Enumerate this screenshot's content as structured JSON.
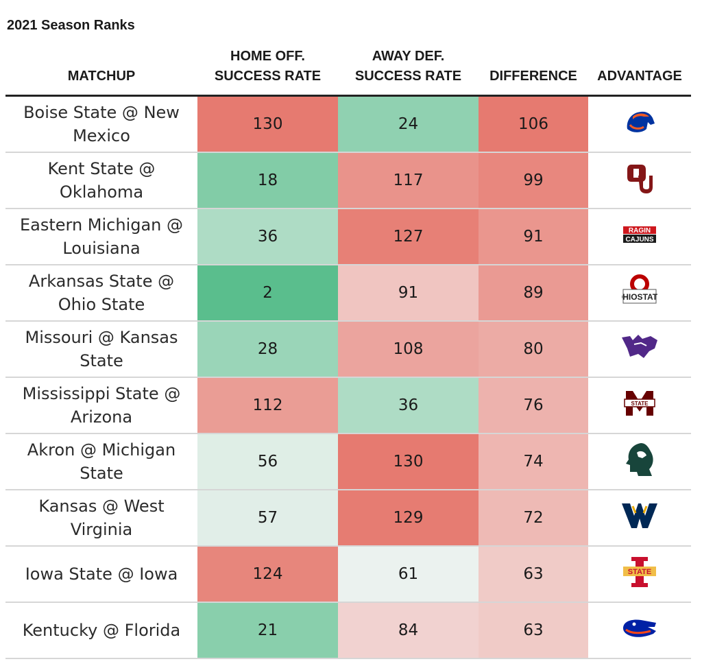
{
  "title": "2021 Season Ranks",
  "headers": {
    "matchup": "MATCHUP",
    "home_off": [
      "HOME OFF.",
      "SUCCESS RATE"
    ],
    "away_def": [
      "AWAY DEF.",
      "SUCCESS RATE"
    ],
    "difference": "DIFFERENCE",
    "advantage": "ADVANTAGE"
  },
  "colors": {
    "green_strong": "#58bd8b",
    "red_strong": "#e67a70",
    "light": "#f6f6f6"
  },
  "chart_data": {
    "type": "table",
    "title": "2021 Season Ranks",
    "columns": [
      "MATCHUP",
      "HOME OFF. SUCCESS RATE",
      "AWAY DEF. SUCCESS RATE",
      "DIFFERENCE",
      "ADVANTAGE"
    ],
    "rows": [
      {
        "matchup": "Boise State @ New Mexico",
        "home_off": 130,
        "away_def": 24,
        "difference": 106,
        "advantage_icon": "boise-state-bronco-logo"
      },
      {
        "matchup": "Kent State @ Oklahoma",
        "home_off": 18,
        "away_def": 117,
        "difference": 99,
        "advantage_icon": "oklahoma-ou-logo"
      },
      {
        "matchup": "Eastern Michigan @ Louisiana",
        "home_off": 36,
        "away_def": 127,
        "difference": 91,
        "advantage_icon": "ragin-cajuns-logo"
      },
      {
        "matchup": "Arkansas State @ Ohio State",
        "home_off": 2,
        "away_def": 91,
        "difference": 89,
        "advantage_icon": "ohio-state-logo"
      },
      {
        "matchup": "Missouri @ Kansas State",
        "home_off": 28,
        "away_def": 108,
        "difference": 80,
        "advantage_icon": "kansas-state-wildcat-logo"
      },
      {
        "matchup": "Mississippi State @ Arizona",
        "home_off": 112,
        "away_def": 36,
        "difference": 76,
        "advantage_icon": "mississippi-state-logo"
      },
      {
        "matchup": "Akron @ Michigan State",
        "home_off": 56,
        "away_def": 130,
        "difference": 74,
        "advantage_icon": "michigan-state-spartan-logo"
      },
      {
        "matchup": "Kansas @ West Virginia",
        "home_off": 57,
        "away_def": 129,
        "difference": 72,
        "advantage_icon": "west-virginia-wv-logo"
      },
      {
        "matchup": "Iowa State @ Iowa",
        "home_off": 124,
        "away_def": 61,
        "difference": 63,
        "advantage_icon": "iowa-state-logo"
      },
      {
        "matchup": "Kentucky @ Florida",
        "home_off": 21,
        "away_def": 84,
        "difference": 63,
        "advantage_icon": "florida-gator-logo"
      }
    ]
  }
}
